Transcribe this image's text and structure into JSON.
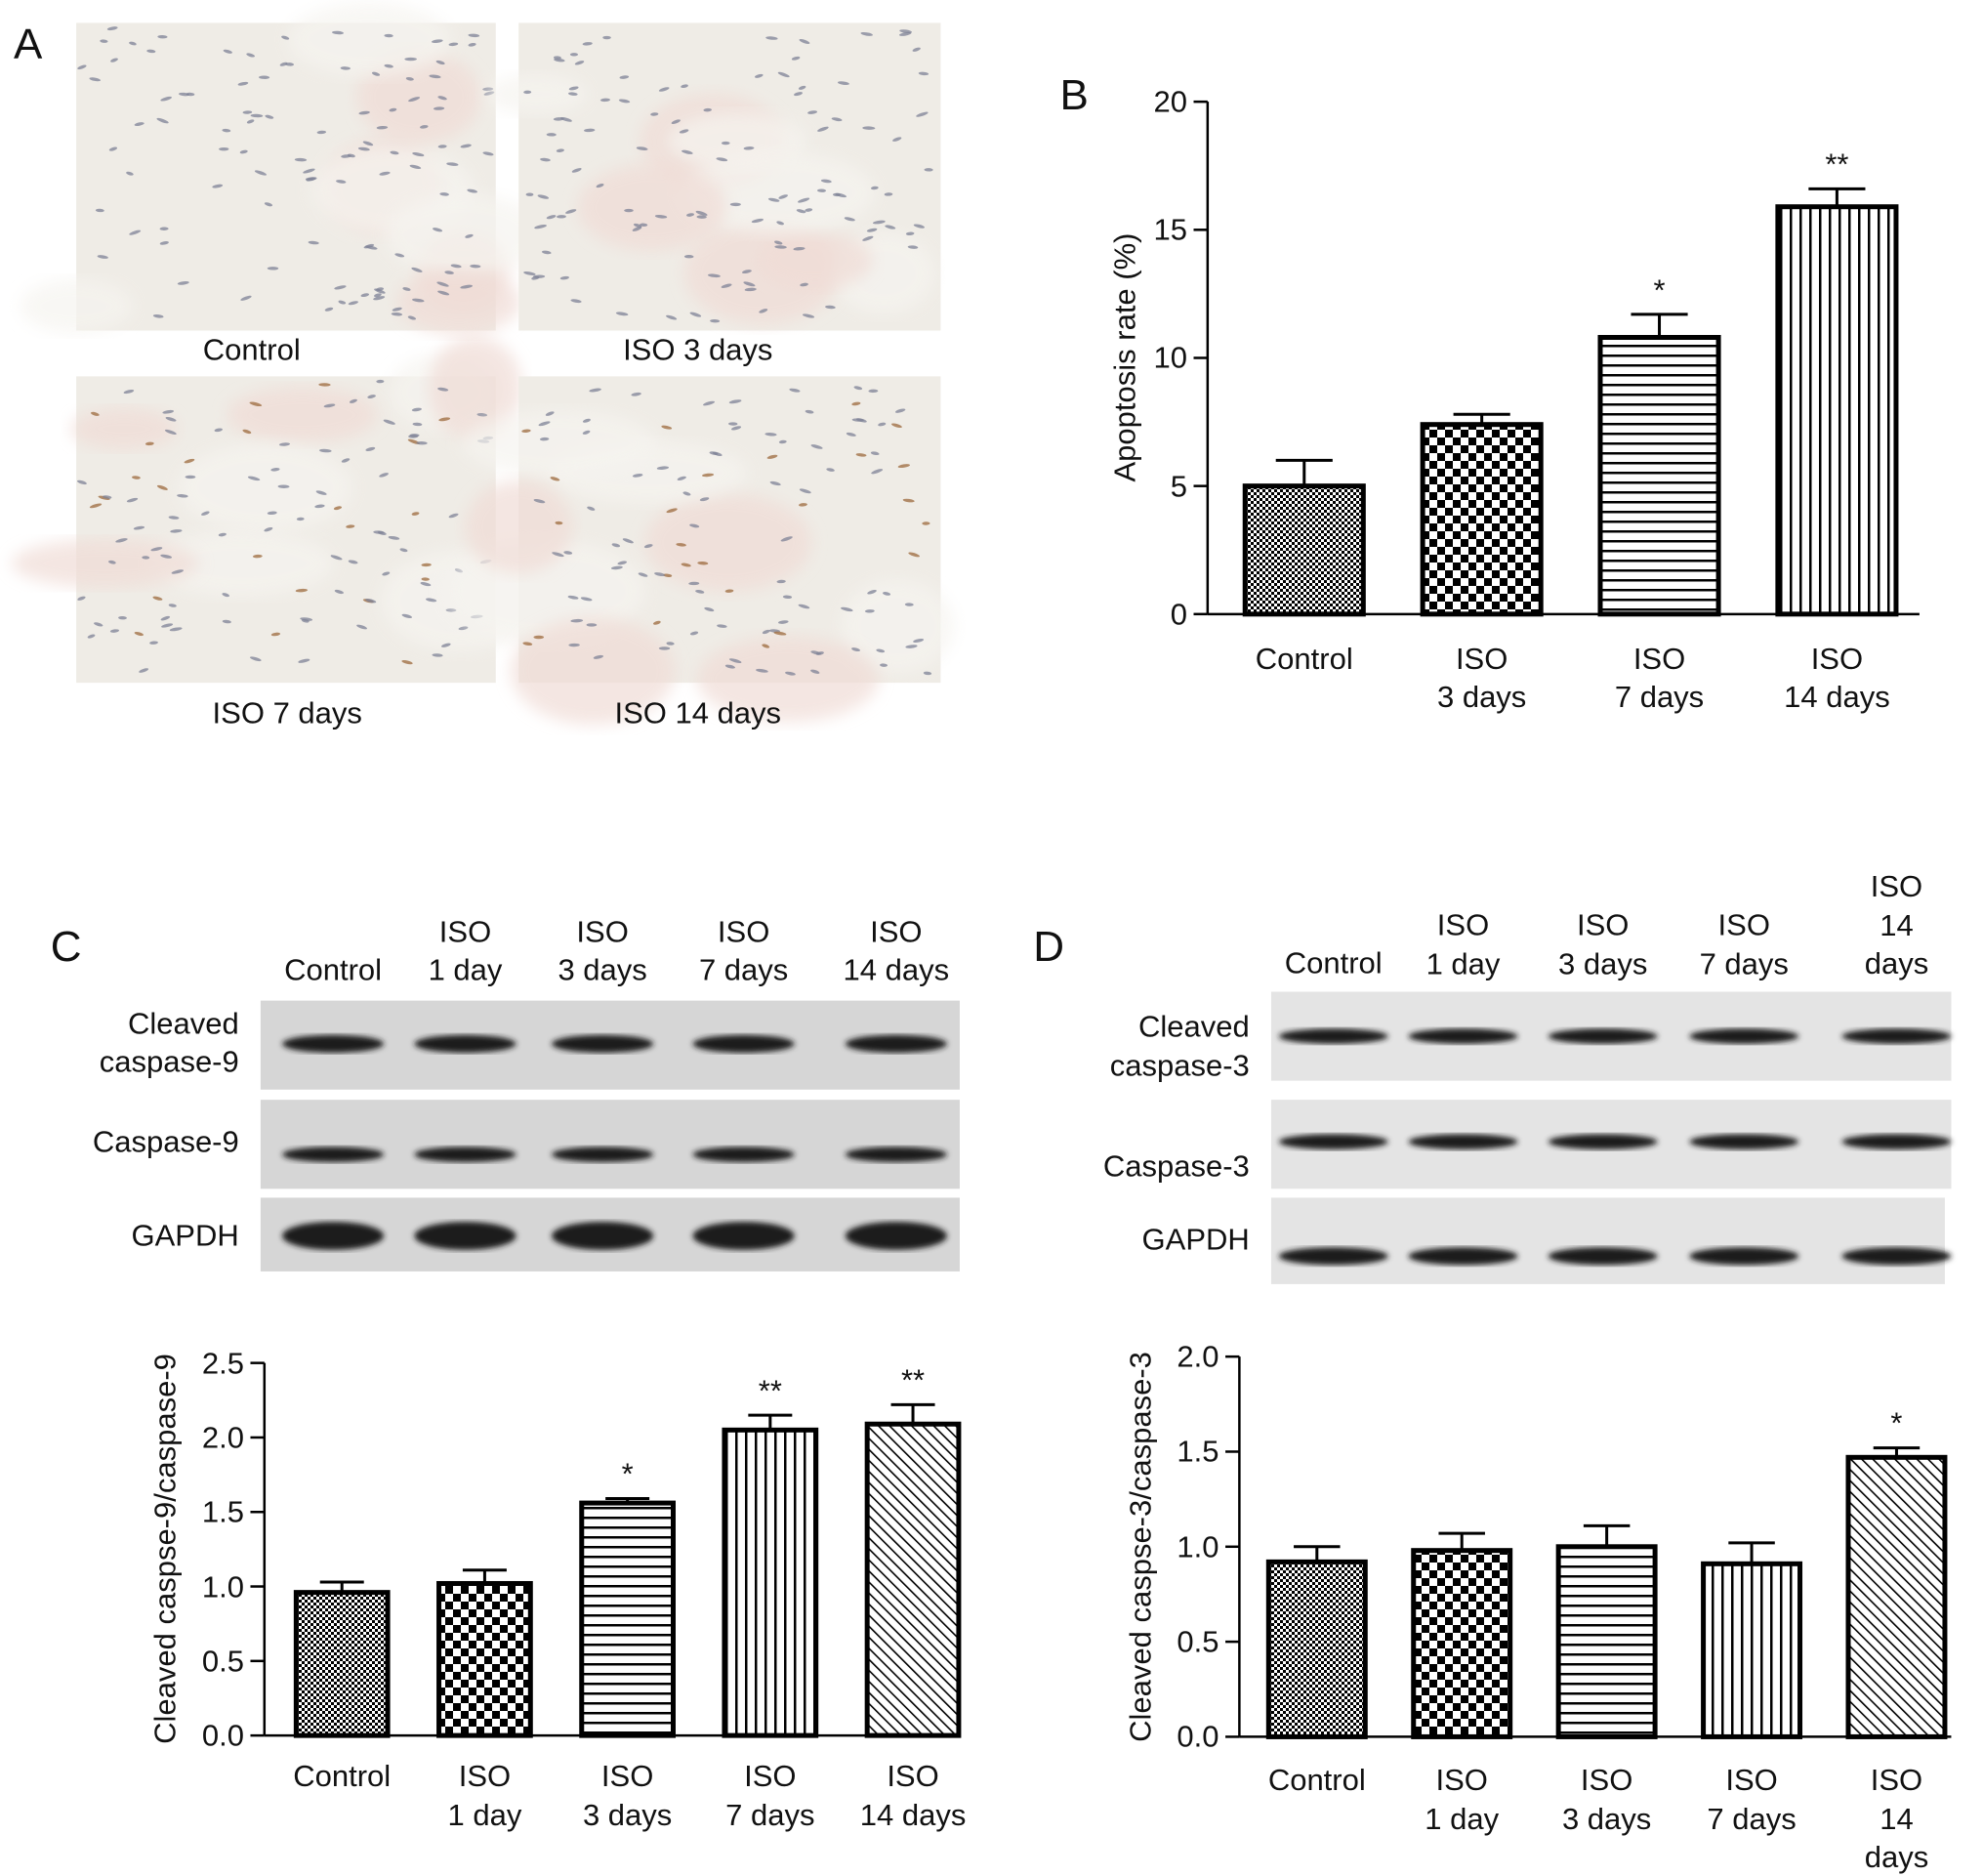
{
  "panel_labels": [
    "A",
    "B",
    "C",
    "D"
  ],
  "histology": {
    "captions": [
      "Control",
      "ISO 3 days",
      "ISO 7 days",
      "ISO 14 days"
    ]
  },
  "blots": [
    {
      "lanes": [
        "Control",
        "ISO\n1 day",
        "ISO\n3 days",
        "ISO\n7 days",
        "ISO\n14 days"
      ],
      "rows": [
        "Cleaved\ncaspase-9",
        "Caspase-9",
        "GAPDH"
      ]
    },
    {
      "lanes": [
        "Control",
        "ISO\n1 day",
        "ISO\n3 days",
        "ISO\n7 days",
        "ISO\n14 days"
      ],
      "rows": [
        "Cleaved\ncaspase-3",
        "Caspase-3",
        "GAPDH"
      ]
    }
  ],
  "chart_data": [
    {
      "type": "bar",
      "ylabel": "Apoptosis rate (%)",
      "color": "#000000",
      "categories": [
        "Control",
        "ISO\n3 days",
        "ISO\n7 days",
        "ISO\n14 days"
      ],
      "values": [
        5.0,
        7.4,
        10.8,
        15.9
      ],
      "errors": [
        1.0,
        0.4,
        0.9,
        0.7
      ],
      "annotations": [
        null,
        null,
        "*",
        "**"
      ],
      "patterns": [
        "fine-check",
        "check",
        "horizontal",
        "vertical"
      ],
      "ylim": [
        0,
        20
      ],
      "yticks": [
        0,
        5,
        10,
        15,
        20
      ]
    },
    {
      "type": "bar",
      "ylabel": "Cleaved caspse-9/caspase-9",
      "color": "#000000",
      "categories": [
        "Control",
        "ISO\n1 day",
        "ISO\n3 days",
        "ISO\n7 days",
        "ISO\n14 days"
      ],
      "values": [
        0.96,
        1.02,
        1.56,
        2.05,
        2.09
      ],
      "errors": [
        0.07,
        0.09,
        0.03,
        0.1,
        0.13
      ],
      "annotations": [
        null,
        null,
        "*",
        "**",
        "**"
      ],
      "patterns": [
        "fine-check",
        "check",
        "horizontal",
        "vertical",
        "diagonal"
      ],
      "ylim": [
        0,
        2.5
      ],
      "yticks": [
        {
          "value": 0,
          "label": "0.0"
        },
        0.5,
        {
          "value": 1,
          "label": "1.0"
        },
        1.5,
        {
          "value": 2,
          "label": "2.0"
        },
        2.5
      ]
    },
    {
      "type": "bar",
      "ylabel": "Cleaved caspse-3/caspase-3",
      "color": "#000000",
      "categories": [
        "Control",
        "ISO\n1 day",
        "ISO\n3 days",
        "ISO\n7 days",
        "ISO\n14 days"
      ],
      "values": [
        0.92,
        0.98,
        1.0,
        0.91,
        1.47
      ],
      "errors": [
        0.08,
        0.09,
        0.11,
        0.11,
        0.05
      ],
      "annotations": [
        null,
        null,
        null,
        null,
        "*"
      ],
      "patterns": [
        "fine-check",
        "check",
        "horizontal",
        "vertical",
        "diagonal"
      ],
      "ylim": [
        0,
        2
      ],
      "yticks": [
        {
          "value": 0,
          "label": "0.0"
        },
        0.5,
        {
          "value": 1,
          "label": "1.0"
        },
        1.5,
        {
          "value": 2,
          "label": "2.0"
        }
      ]
    }
  ]
}
